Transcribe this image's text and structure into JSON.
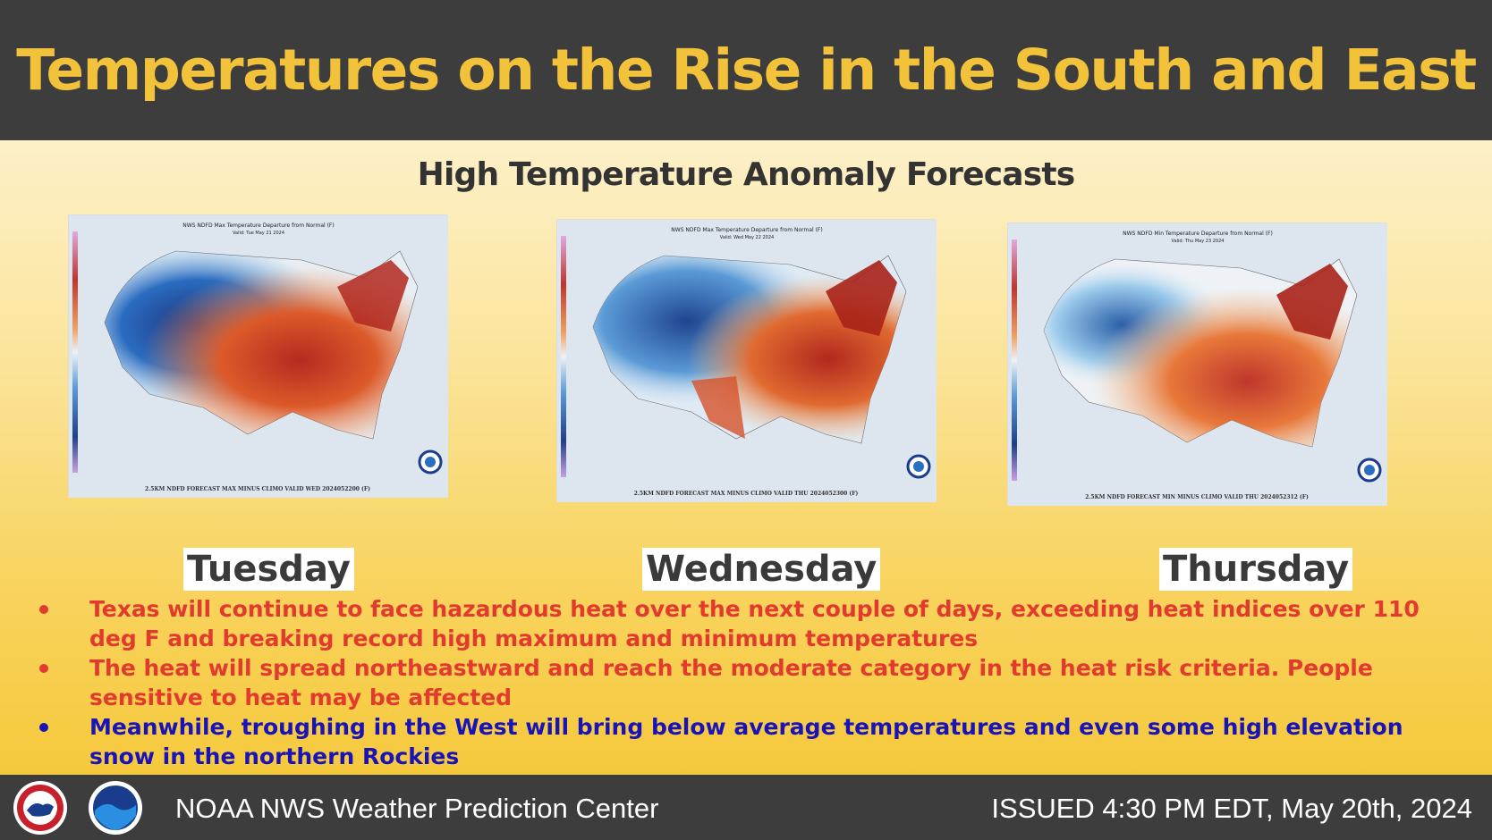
{
  "header": {
    "title": "Temperatures on the Rise in the South and East"
  },
  "main": {
    "subtitle": "High Temperature Anomaly Forecasts",
    "maps": [
      {
        "day": "Tuesday",
        "map_title": "NWS NDFD Max Temperature Departure from Normal (F)",
        "valid": "Valid: Tue May 21 2024",
        "caption": "2.5KM NDFD FORECAST MAX MINUS CLIMO VALID WED 2024052200 (F)"
      },
      {
        "day": "Wednesday",
        "map_title": "NWS NDFD Max Temperature Departure from Normal (F)",
        "valid": "Valid: Wed May 22 2024",
        "caption": "2.5KM NDFD FORECAST MAX MINUS CLIMO VALID THU 2024052300 (F)"
      },
      {
        "day": "Thursday",
        "map_title": "NWS NDFD Min Temperature Departure from Normal (F)",
        "valid": "Valid: Thu May 23 2024",
        "caption": "2.5KM NDFD FORECAST MIN MINUS CLIMO VALID THU 2024052312 (F)"
      }
    ],
    "bullets": [
      {
        "text": "Texas will continue to face hazardous heat over the next couple of days, exceeding heat indices over 110 deg F and breaking record high maximum and minimum temperatures",
        "color": "#e23a2f"
      },
      {
        "text": "The heat will spread northeastward and reach the moderate category in the heat risk criteria. People sensitive to heat may be affected",
        "color": "#e23a2f"
      },
      {
        "text": "Meanwhile, troughing in the West will bring below average temperatures and even some high elevation snow in the northern Rockies",
        "color": "#1a13b8"
      }
    ]
  },
  "footer": {
    "org": "NOAA NWS Weather Prediction Center",
    "issued": "ISSUED 4:30 PM EDT, May 20th, 2024",
    "logos": [
      "nws-logo",
      "noaa-logo"
    ]
  },
  "colors": {
    "title": "#f2c33a",
    "bar": "#3d3d3d",
    "warm": "#c0362c",
    "cool": "#2b5fa8"
  }
}
